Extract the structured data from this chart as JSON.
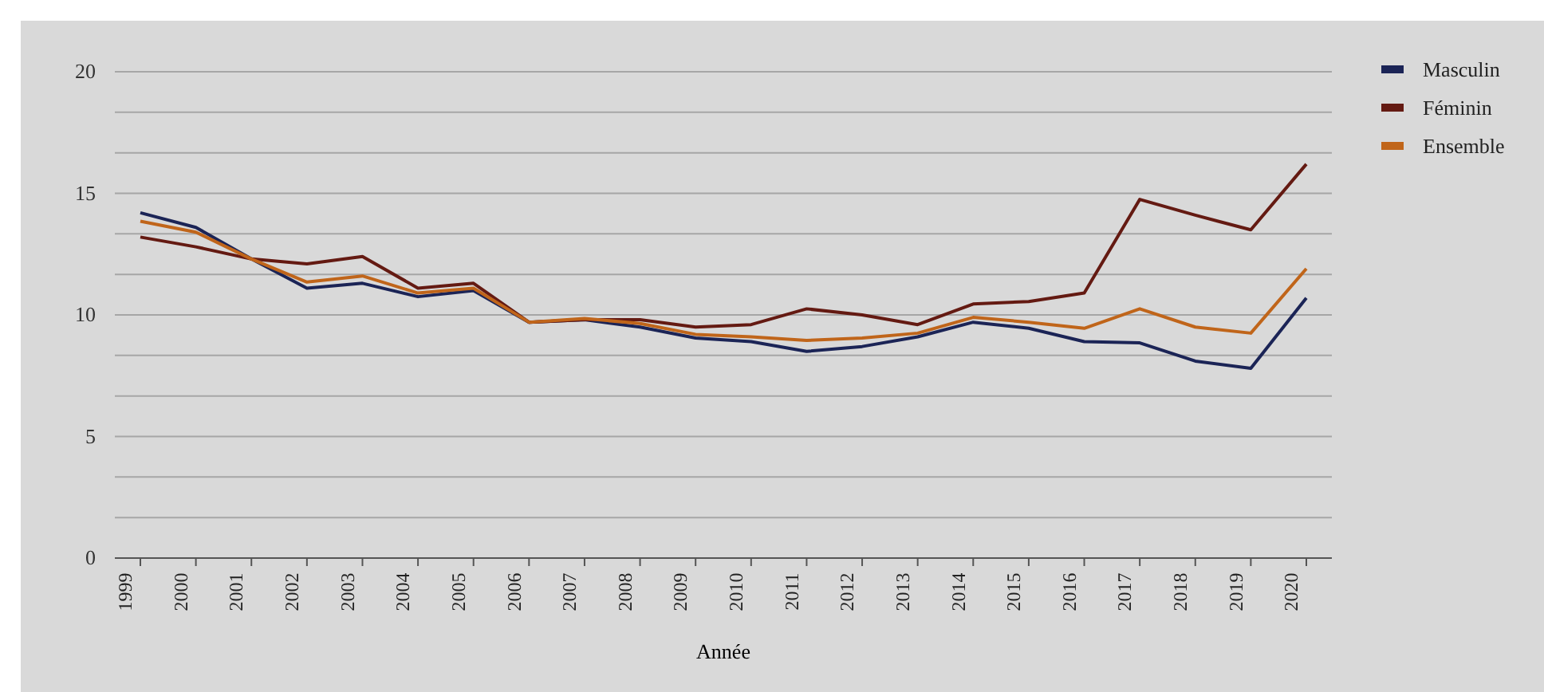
{
  "chart_data": {
    "type": "line",
    "xlabel": "Année",
    "categories": [
      "1999",
      "2000",
      "2001",
      "2002",
      "2003",
      "2004",
      "2005",
      "2006",
      "2007",
      "2008",
      "2009",
      "2010",
      "2011",
      "2012",
      "2013",
      "2014",
      "2015",
      "2016",
      "2017",
      "2018",
      "2019",
      "2020"
    ],
    "series": [
      {
        "name": "Masculin",
        "color": "#1b2456",
        "values": [
          14.2,
          13.6,
          12.3,
          11.1,
          11.3,
          10.75,
          11.0,
          9.7,
          9.8,
          9.5,
          9.05,
          8.9,
          8.5,
          8.7,
          9.1,
          9.7,
          9.45,
          8.9,
          8.85,
          8.1,
          7.8,
          10.7
        ]
      },
      {
        "name": "Féminin",
        "color": "#641a12",
        "values": [
          13.2,
          12.8,
          12.3,
          12.1,
          12.4,
          11.1,
          11.3,
          9.7,
          9.8,
          9.8,
          9.5,
          9.6,
          10.25,
          10.0,
          9.6,
          10.45,
          10.55,
          10.9,
          14.75,
          14.1,
          13.5,
          16.2
        ]
      },
      {
        "name": "Ensemble",
        "color": "#c0651a",
        "values": [
          13.85,
          13.4,
          12.3,
          11.35,
          11.6,
          10.9,
          11.1,
          9.7,
          9.85,
          9.65,
          9.2,
          9.1,
          8.95,
          9.05,
          9.25,
          9.9,
          9.7,
          9.45,
          10.25,
          9.5,
          9.25,
          11.9
        ]
      }
    ],
    "ylim": [
      0,
      20
    ],
    "yticks": [
      0,
      {
        "value": 1.667,
        "label": null
      },
      {
        "value": 3.333,
        "label": null
      },
      5,
      {
        "value": 6.667,
        "label": null
      },
      {
        "value": 8.333,
        "label": null
      },
      10,
      {
        "value": 11.667,
        "label": null
      },
      {
        "value": 13.333,
        "label": null
      },
      15,
      {
        "value": 16.667,
        "label": null
      },
      {
        "value": 18.333,
        "label": null
      },
      20
    ],
    "grid": "y",
    "legend": "top right",
    "marker": "none",
    "line_style": "solid"
  }
}
